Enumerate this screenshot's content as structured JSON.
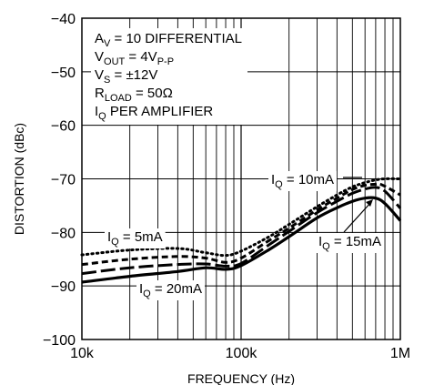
{
  "chart_data": {
    "type": "line",
    "xlabel": "FREQUENCY (Hz)",
    "ylabel": "DISTORTION (dBc)",
    "xscale": "log",
    "xlim": [
      10000,
      1000000
    ],
    "ylim": [
      -100,
      -40
    ],
    "grid": true,
    "x_tick_labels": [
      "10k",
      "100k",
      "1M"
    ],
    "y_tick_labels": [
      "-40",
      "-50",
      "-60",
      "-70",
      "-80",
      "-90",
      "-100"
    ],
    "conditions": [
      {
        "main": "A",
        "sub": "V",
        "rest": " = 10 DIFFERENTIAL"
      },
      {
        "main": "V",
        "sub": "OUT",
        "rest": " = 4V",
        "sub2": "P-P"
      },
      {
        "main": "V",
        "sub": "S",
        "rest": " = ±12V"
      },
      {
        "main": "R",
        "sub": "LOAD",
        "rest": " = 50Ω"
      },
      {
        "main": "I",
        "sub": "Q",
        "rest": " PER AMPLIFIER"
      }
    ],
    "series": [
      {
        "label_main": "I",
        "label_sub": "Q",
        "label_rest": " = 5mA",
        "style": "dotted",
        "x": [
          10000,
          20000,
          40000,
          60000,
          80000,
          100000,
          150000,
          200000,
          300000,
          400000,
          500000,
          600000,
          700000,
          800000,
          1000000
        ],
        "y": [
          -84.2,
          -83.3,
          -83.0,
          -83.8,
          -84.3,
          -83.5,
          -80.8,
          -78.5,
          -75.2,
          -73.0,
          -71.5,
          -70.7,
          -70.2,
          -70.0,
          -70.0
        ]
      },
      {
        "label_main": "I",
        "label_sub": "Q",
        "label_rest": " = 10mA",
        "style": "short-dash",
        "x": [
          10000,
          20000,
          40000,
          60000,
          80000,
          100000,
          150000,
          200000,
          300000,
          400000,
          500000,
          600000,
          700000,
          750000,
          850000,
          1000000
        ],
        "y": [
          -86.0,
          -85.0,
          -84.5,
          -84.8,
          -85.6,
          -84.8,
          -81.5,
          -79.2,
          -75.8,
          -73.6,
          -72.0,
          -71.2,
          -71.0,
          -71.0,
          -71.8,
          -73.0
        ]
      },
      {
        "label_main": "I",
        "label_sub": "Q",
        "label_rest": " = 15mA",
        "style": "long-dash",
        "x": [
          10000,
          20000,
          40000,
          60000,
          80000,
          100000,
          150000,
          200000,
          300000,
          400000,
          500000,
          600000,
          700000,
          800000,
          1000000
        ],
        "y": [
          -87.7,
          -86.6,
          -86.0,
          -85.9,
          -86.3,
          -85.8,
          -82.3,
          -79.8,
          -76.3,
          -74.2,
          -72.7,
          -71.9,
          -71.6,
          -72.3,
          -75.5
        ]
      },
      {
        "label_main": "I",
        "label_sub": "Q",
        "label_rest": " = 20mA",
        "style": "solid",
        "x": [
          10000,
          20000,
          40000,
          60000,
          80000,
          100000,
          150000,
          200000,
          300000,
          400000,
          500000,
          600000,
          700000,
          800000,
          1000000
        ],
        "y": [
          -89.3,
          -88.2,
          -87.3,
          -86.6,
          -86.9,
          -86.2,
          -83.2,
          -80.8,
          -77.3,
          -75.4,
          -74.2,
          -73.6,
          -73.6,
          -74.6,
          -77.8
        ]
      }
    ]
  }
}
